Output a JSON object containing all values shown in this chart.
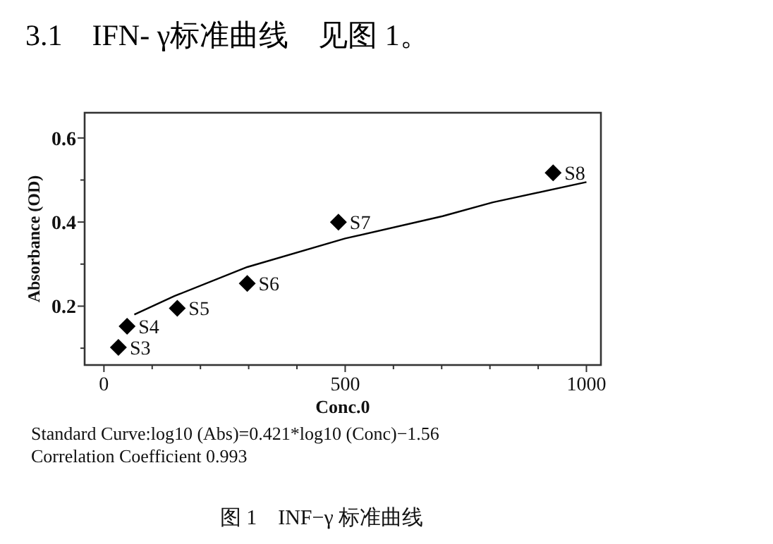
{
  "chart_data": {
    "type": "scatter",
    "title": "3.1　IFN- γ标准曲线　见图 1。",
    "xlabel": "Conc.0",
    "ylabel": "Absorbance (OD)",
    "xlim": [
      -40,
      1030
    ],
    "ylim": [
      0.06,
      0.66
    ],
    "xticks": [
      0,
      {
        "value": 100,
        "label": null
      },
      {
        "value": 200,
        "label": null
      },
      {
        "value": 300,
        "label": null
      },
      {
        "value": 400,
        "label": null
      },
      500,
      {
        "value": 600,
        "label": null
      },
      {
        "value": 700,
        "label": null
      },
      {
        "value": 800,
        "label": null
      },
      {
        "value": 900,
        "label": null
      },
      1000
    ],
    "yticks": [
      {
        "value": 0.1,
        "label": null
      },
      0.2,
      {
        "value": 0.3,
        "label": null
      },
      0.4,
      {
        "value": 0.5,
        "label": null
      },
      0.6
    ],
    "grid": false,
    "series": [
      {
        "marker": "diamond",
        "color": "#000000",
        "x": [
          30,
          48,
          152,
          297,
          486,
          931
        ],
        "values": [
          0.102,
          0.152,
          0.195,
          0.254,
          0.4,
          0.517
        ]
      },
      {
        "type": "line",
        "marker": "none",
        "line_style": "solid",
        "color": "#000000",
        "x": [
          63,
          146,
          297,
          500,
          702,
          806,
          1000
        ],
        "values": [
          0.18,
          0.224,
          0.293,
          0.361,
          0.414,
          0.447,
          0.495
        ]
      }
    ],
    "annotations": [
      {
        "text": "S3",
        "x": 30,
        "y": 0.102
      },
      {
        "text": "S4",
        "x": 48,
        "y": 0.152
      },
      {
        "text": "S5",
        "x": 152,
        "y": 0.195
      },
      {
        "text": "S6",
        "x": 297,
        "y": 0.254
      },
      {
        "text": "S7",
        "x": 486,
        "y": 0.4
      },
      {
        "text": "S8",
        "x": 931,
        "y": 0.517
      },
      "Standard  Curve:log10 (Abs)=0.421*log10 (Conc)−1.56",
      "Correlation  Coefficient  0.993",
      "图 1　INF−γ 标准曲线"
    ]
  }
}
